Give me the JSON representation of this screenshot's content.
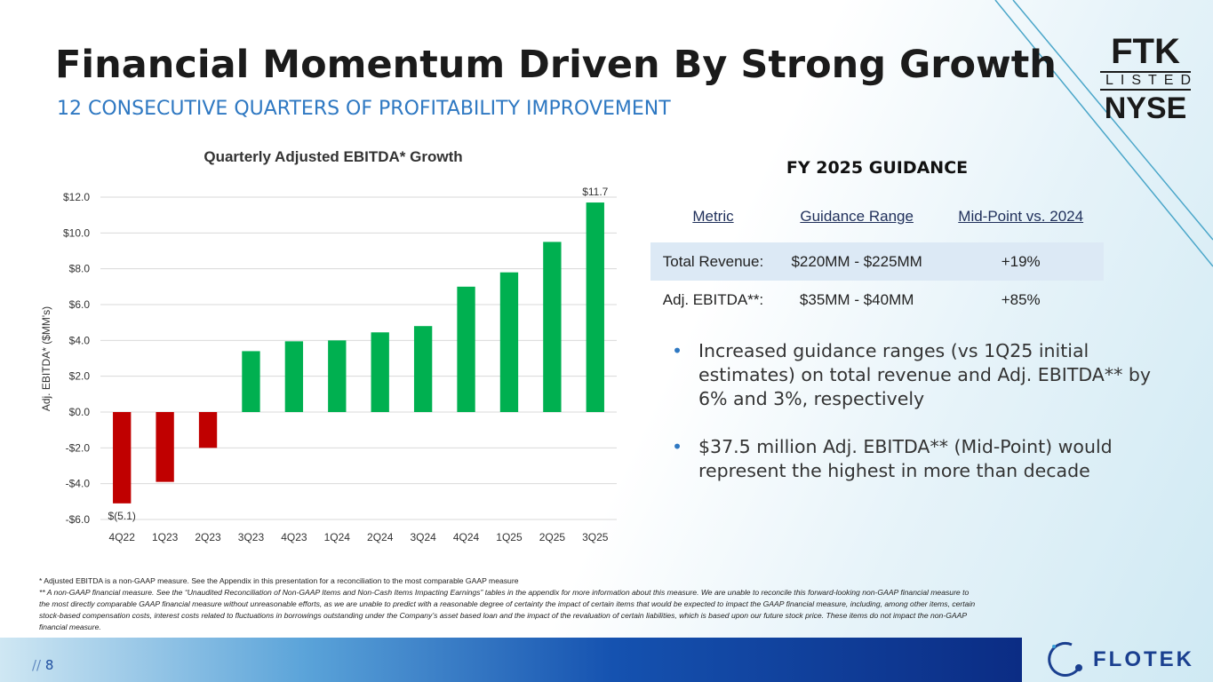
{
  "header": {
    "title": "Financial Momentum Driven By Strong Growth",
    "subtitle": "12 CONSECUTIVE QUARTERS OF PROFITABILITY IMPROVEMENT"
  },
  "chart_data": {
    "type": "bar",
    "title": "Quarterly Adjusted EBITDA* Growth",
    "y_label": "Adj. EBITDA* ($MM's)",
    "categories": [
      "4Q22",
      "1Q23",
      "2Q23",
      "3Q23",
      "4Q23",
      "1Q24",
      "2Q24",
      "3Q24",
      "4Q24",
      "1Q25",
      "2Q25",
      "3Q25"
    ],
    "values": [
      -5.1,
      -3.9,
      -2.0,
      3.4,
      3.95,
      4.0,
      4.45,
      4.8,
      7.0,
      7.8,
      9.5,
      11.7
    ],
    "value_labels": [
      "$(5.1)",
      null,
      null,
      null,
      null,
      null,
      null,
      null,
      null,
      null,
      null,
      "$11.7"
    ],
    "color_positive": "#00b050",
    "color_negative": "#c00000",
    "ylim": [
      -6,
      12
    ],
    "yticks": [
      {
        "value": -6,
        "label": "-$6.0"
      },
      {
        "value": -4,
        "label": "-$4.0"
      },
      {
        "value": -2,
        "label": "-$2.0"
      },
      {
        "value": 0,
        "label": "$0.0"
      },
      {
        "value": 2,
        "label": "$2.0"
      },
      {
        "value": 4,
        "label": "$4.0"
      },
      {
        "value": 6,
        "label": "$6.0"
      },
      {
        "value": 8,
        "label": "$8.0"
      },
      {
        "value": 10,
        "label": "$10.0"
      },
      {
        "value": 12,
        "label": "$12.0"
      }
    ],
    "grid": true
  },
  "guidance": {
    "title": "FY 2025 GUIDANCE",
    "header": [
      "Metric",
      "Guidance Range",
      "Mid-Point vs. 2024"
    ],
    "rows": [
      [
        "Total Revenue:",
        "$220MM - $225MM",
        "+19%"
      ],
      [
        "Adj. EBITDA**:",
        "$35MM - $40MM",
        "+85%"
      ]
    ]
  },
  "bullets": [
    "Increased guidance ranges (vs 1Q25 initial estimates) on total revenue and Adj. EBITDA** by 6% and 3%, respectively",
    "$37.5 million Adj. EBITDA** (Mid-Point) would represent the highest in more than decade"
  ],
  "footnotes": [
    "*    Adjusted EBITDA is a non-GAAP measure.  See the Appendix in this presentation for a reconciliation to the most comparable GAAP measure",
    "** A non-GAAP financial measure. See the “Unaudited Reconciliation of Non-GAAP Items and Non-Cash Items Impacting Earnings” tables  in the appendix for more information about this measure. We are unable to reconcile this forward-looking non-GAAP financial measure to the most directly comparable GAAP financial measure without unreasonable efforts, as we are unable to predict with a reasonable degree of certainty the impact of certain items that would be expected to impact the GAAP financial measure, including, among other items, certain stock-based compensation costs, interest costs related to fluctuations in borrowings outstanding under the Company’s asset based loan and the impact of the revaluation of certain liabilities, which is based upon our future stock price. These items do not impact the non-GAAP financial measure."
  ],
  "footer": {
    "marker": "//",
    "page": "8",
    "brand": "FLOTEK"
  },
  "listing": {
    "ticker": "FTK",
    "listed": "LISTED",
    "exchange": "NYSE"
  }
}
